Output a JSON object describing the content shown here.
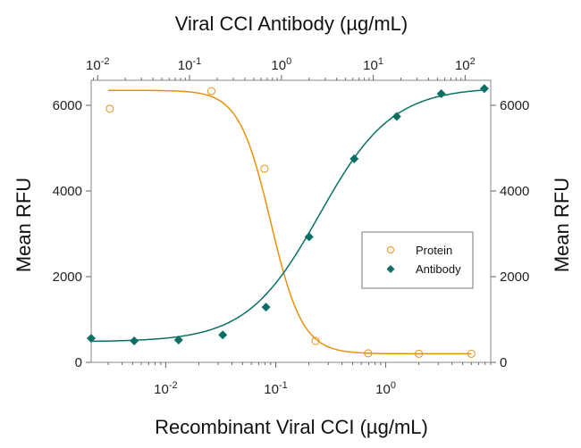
{
  "chart_data": {
    "type": "scatter",
    "title": "",
    "top_xlabel": "Viral CCI Antibody (µg/mL)",
    "xlabel": "Recombinant Viral CCI (µg/mL)",
    "ylabel": "Mean RFU",
    "ylabel_right": "Mean RFU",
    "x_scale": "log",
    "xlim_bottom": [
      0.0021,
      9.0
    ],
    "xlim_top": [
      0.0085,
      190
    ],
    "ylim": [
      0,
      6600
    ],
    "yticks": [
      0,
      2000,
      4000,
      6000
    ],
    "bottom_xticks": [
      "10-2",
      "10-1",
      "100"
    ],
    "top_xticks": [
      "10-2",
      "10-1",
      "100",
      "101",
      "102"
    ],
    "grid": false,
    "legend_position": "center-right",
    "series": [
      {
        "name": "Protein",
        "axis": "bottom",
        "marker": "open-circle",
        "color": "#e8900f",
        "x": [
          0.0031,
          0.026,
          0.079,
          0.23,
          0.69,
          2.0,
          6.0
        ],
        "y": [
          5920,
          6330,
          4520,
          500,
          210,
          200,
          200
        ]
      },
      {
        "name": "Antibody",
        "axis": "top",
        "marker": "filled-diamond",
        "color": "#0a7065",
        "x": [
          0.0085,
          0.025,
          0.076,
          0.23,
          0.68,
          2.0,
          6.2,
          18,
          55,
          162
        ],
        "y": [
          560,
          500,
          520,
          640,
          1290,
          2930,
          4750,
          5740,
          6270,
          6390
        ]
      }
    ]
  }
}
